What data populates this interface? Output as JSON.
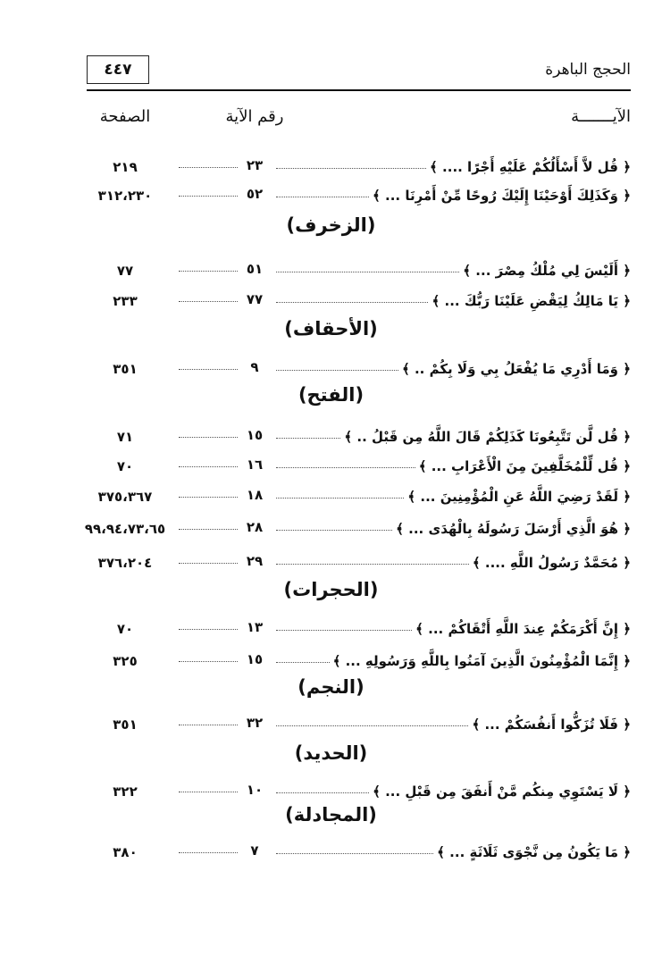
{
  "header": {
    "page_number": "٤٤٧",
    "book_title": "الحجج الباهرة"
  },
  "columns": {
    "verse": "الآيـــــــة",
    "ayah_number": "رقم الآية",
    "page": "الصفحة"
  },
  "entries": [
    {
      "verse": "﴿ قُل لاَّ أَسْأَلُكُمْ عَلَيْهِ أَجْرًا .... ﴾",
      "ayah": "٢٣",
      "page": "٢١٩"
    },
    {
      "verse": "﴿ وَكَذَلِكَ أَوْحَيْنَا إِلَيْكَ رُوحًا مِّنْ أَمْرِنَا ... ﴾",
      "ayah": "٥٢",
      "page": "٣١٢،٢٣٠"
    },
    {
      "heading": "(الزخرف)"
    },
    {
      "verse": "﴿ أَلَيْسَ لِي مُلْكُ مِصْرَ ... ﴾",
      "ayah": "٥١",
      "page": "٧٧"
    },
    {
      "verse": "﴿ يَا مَالِكُ لِيَقْضِ عَلَيْنَا رَبُّكَ ... ﴾",
      "ayah": "٧٧",
      "page": "٢٣٣"
    },
    {
      "heading": "(الأحقاف)"
    },
    {
      "verse": "﴿ وَمَا أَدْرِي مَا يُفْعَلُ بِي وَلَا بِكُمْ .. ﴾",
      "ayah": "٩",
      "page": "٣٥١"
    },
    {
      "heading": "(الفتح)"
    },
    {
      "verse": "﴿ قُل لَّن تَتَّبِعُونَا كَذَلِكُمْ قَالَ اللَّهُ مِن قَبْلُ .. ﴾",
      "ayah": "١٥",
      "page": "٧١"
    },
    {
      "verse": "﴿ قُل لِّلْمُخَلَّفِينَ مِنَ الْأَعْرَابِ ... ﴾",
      "ayah": "١٦",
      "page": "٧٠"
    },
    {
      "verse": "﴿ لَقَدْ رَضِيَ اللَّهُ عَنِ الْمُؤْمِنِينَ ... ﴾",
      "ayah": "١٨",
      "page": "٣٧٥،٣٦٧"
    },
    {
      "verse": "﴿ هُوَ الَّذِي أَرْسَلَ رَسُولَهُ بِالْهُدَى ... ﴾",
      "ayah": "٢٨",
      "page": "٩٩،٩٤،٧٣،٦٥"
    },
    {
      "verse": "﴿ مُحَمَّدٌ رَسُولُ اللَّهِ .... ﴾",
      "ayah": "٢٩",
      "page": "٣٧٦،٢٠٤"
    },
    {
      "heading": "(الحجرات)"
    },
    {
      "verse": "﴿ إِنَّ أَكْرَمَكُمْ عِندَ اللَّهِ أَتْقَاكُمْ ... ﴾",
      "ayah": "١٣",
      "page": "٧٠"
    },
    {
      "verse": "﴿ إِنَّمَا الْمُؤْمِنُونَ الَّذِينَ آمَنُوا بِاللَّهِ وَرَسُولِهِ ... ﴾",
      "ayah": "١٥",
      "page": "٣٢٥"
    },
    {
      "heading": "(النجم)"
    },
    {
      "verse": "﴿ فَلَا تُزَكُّوا أَنفُسَكُمْ ... ﴾",
      "ayah": "٣٢",
      "page": "٣٥١"
    },
    {
      "heading": "(الحديد)"
    },
    {
      "verse": "﴿ لَا يَسْتَوِي مِنكُم مَّنْ أَنفَقَ مِن قَبْلِ ... ﴾",
      "ayah": "١٠",
      "page": "٣٢٢"
    },
    {
      "heading": "(المجادلة)"
    },
    {
      "verse": "﴿ مَا يَكُونُ مِن نَّجْوَى ثَلَاثَةٍ ... ﴾",
      "ayah": "٧",
      "page": "٣٨٠"
    }
  ]
}
